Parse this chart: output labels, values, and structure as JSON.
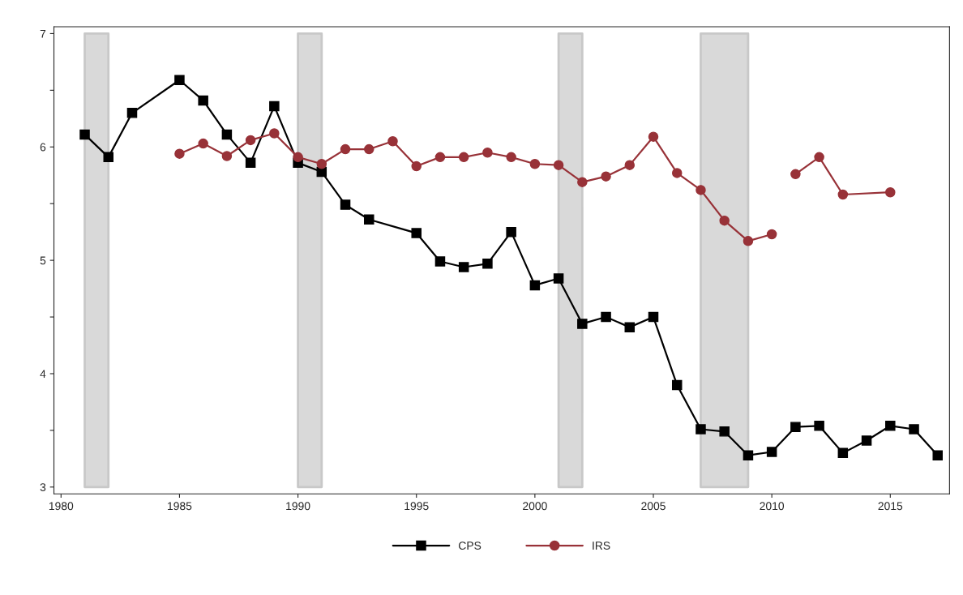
{
  "chart_data": {
    "type": "line",
    "xlim": [
      1979.7,
      2017.5
    ],
    "ylim": [
      2.94,
      7.06
    ],
    "xticks": [
      1980,
      1985,
      1990,
      1995,
      2000,
      2005,
      2010,
      2015
    ],
    "yticks": [
      3,
      {
        "value": 3.5,
        "label": null
      },
      4,
      {
        "value": 4.5,
        "label": null
      },
      5,
      {
        "value": 5.5,
        "label": null
      },
      6,
      {
        "value": 6.5,
        "label": null
      },
      7
    ],
    "grid": false,
    "legend": "bottom",
    "line_style": "solid",
    "bands": [
      {
        "axis": "x",
        "from": 1981,
        "to": 1982,
        "color": "#d9d9d9"
      },
      {
        "axis": "x",
        "from": 1990,
        "to": 1991,
        "color": "#d9d9d9"
      },
      {
        "axis": "x",
        "from": 2001,
        "to": 2002,
        "color": "#d9d9d9"
      },
      {
        "axis": "x",
        "from": 2007,
        "to": 2009,
        "color": "#d9d9d9"
      }
    ],
    "series": [
      {
        "name": "CPS",
        "color": "#000000",
        "marker": "square",
        "x": [
          1981,
          1982,
          1983,
          1985,
          1986,
          1987,
          1988,
          1989,
          1990,
          1991,
          1992,
          1993,
          1995,
          1996,
          1997,
          1998,
          1999,
          2000,
          2001,
          2002,
          2003,
          2004,
          2005,
          2006,
          2007,
          2008,
          2009,
          2010,
          2011,
          2012,
          2013,
          2014,
          2015,
          2016,
          2017
        ],
        "values": [
          6.11,
          5.91,
          6.3,
          6.59,
          6.41,
          6.11,
          5.86,
          6.36,
          5.86,
          5.78,
          5.49,
          5.36,
          5.24,
          4.99,
          4.94,
          4.97,
          5.25,
          4.78,
          4.84,
          4.44,
          4.5,
          4.41,
          4.5,
          3.9,
          3.51,
          3.49,
          3.28,
          3.31,
          3.53,
          3.54,
          3.3,
          3.41,
          3.54,
          3.51,
          3.28
        ]
      },
      {
        "name": "IRS",
        "color": "#983238",
        "marker": "circle",
        "x": [
          1985,
          1986,
          1987,
          1988,
          1989,
          1990,
          1991,
          1992,
          1993,
          1994,
          1995,
          1996,
          1997,
          1998,
          1999,
          2000,
          2001,
          2002,
          2003,
          2004,
          2005,
          2006,
          2007,
          2008,
          2009,
          2010,
          2010.5,
          2011,
          2012,
          2013,
          2015
        ],
        "values": [
          5.94,
          6.03,
          5.92,
          6.06,
          6.12,
          5.91,
          5.85,
          5.98,
          5.98,
          6.05,
          5.83,
          5.91,
          5.91,
          5.95,
          5.91,
          5.85,
          5.84,
          5.69,
          5.74,
          5.84,
          6.09,
          5.77,
          5.62,
          5.35,
          5.17,
          5.23,
          null,
          5.76,
          5.91,
          5.58,
          5.6
        ]
      }
    ]
  }
}
